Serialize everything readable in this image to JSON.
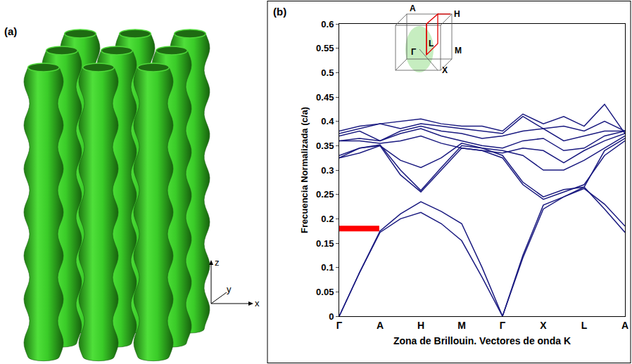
{
  "panel_a": {
    "label": "(a)",
    "axis_labels": {
      "z": "z",
      "y": "y",
      "x": "x"
    }
  },
  "chart_data": {
    "type": "line",
    "panel_label": "(b)",
    "x_label": "Zona de Brillouin. Vectores de onda K",
    "y_label": "Frecuencia Normalizada (c/a)",
    "inset": {
      "labels": [
        "A",
        "H",
        "L",
        "M",
        "Γ",
        "X"
      ]
    },
    "x": [
      0,
      0.5,
      1,
      1.5,
      2,
      2.5,
      3,
      3.5,
      4,
      4.5,
      5,
      5.5,
      6,
      6.5,
      7
    ],
    "xlim": [
      0,
      7
    ],
    "xticks": [
      {
        "value": 0,
        "label": "Γ"
      },
      {
        "value": 1,
        "label": "A"
      },
      {
        "value": 2,
        "label": "H"
      },
      {
        "value": 3,
        "label": "M"
      },
      {
        "value": 4,
        "label": "Γ"
      },
      {
        "value": 5,
        "label": "X"
      },
      {
        "value": 6,
        "label": "L"
      },
      {
        "value": 7,
        "label": "A"
      }
    ],
    "ylim": [
      0,
      0.6
    ],
    "yticks": [
      0,
      0.05,
      0.1,
      0.15,
      0.2,
      0.25,
      0.3,
      0.35,
      0.4,
      0.45,
      0.5,
      0.55,
      0.6
    ],
    "grid": false,
    "series": [
      {
        "color": "#1a1a80",
        "values": [
          0,
          0.09,
          0.172,
          0.2,
          0.213,
          0.19,
          0.155,
          0.08,
          0,
          0.125,
          0.228,
          0.245,
          0.265,
          0.22,
          0.172
        ]
      },
      {
        "color": "#1a1a80",
        "values": [
          0,
          0.09,
          0.175,
          0.21,
          0.235,
          0.215,
          0.19,
          0.1,
          0,
          0.12,
          0.22,
          0.245,
          0.262,
          0.23,
          0.185
        ]
      },
      {
        "color": "#1a1a80",
        "values": [
          0.325,
          0.345,
          0.35,
          0.29,
          0.255,
          0.3,
          0.345,
          0.34,
          0.325,
          0.27,
          0.24,
          0.255,
          0.27,
          0.33,
          0.36
        ]
      },
      {
        "color": "#1a1a80",
        "values": [
          0.33,
          0.345,
          0.352,
          0.3,
          0.258,
          0.305,
          0.35,
          0.345,
          0.33,
          0.275,
          0.245,
          0.26,
          0.265,
          0.34,
          0.365
        ]
      },
      {
        "color": "#1a1a80",
        "values": [
          0.325,
          0.335,
          0.35,
          0.32,
          0.305,
          0.325,
          0.355,
          0.345,
          0.34,
          0.33,
          0.3,
          0.3,
          0.32,
          0.345,
          0.37
        ]
      },
      {
        "color": "#1a1a80",
        "values": [
          0.36,
          0.36,
          0.355,
          0.36,
          0.37,
          0.355,
          0.345,
          0.34,
          0.335,
          0.345,
          0.34,
          0.315,
          0.34,
          0.36,
          0.375
        ]
      },
      {
        "color": "#1a1a80",
        "values": [
          0.36,
          0.365,
          0.36,
          0.375,
          0.385,
          0.37,
          0.36,
          0.35,
          0.345,
          0.36,
          0.365,
          0.34,
          0.345,
          0.37,
          0.38
        ]
      },
      {
        "color": "#1a1a80",
        "values": [
          0.37,
          0.38,
          0.36,
          0.38,
          0.39,
          0.38,
          0.375,
          0.365,
          0.37,
          0.38,
          0.385,
          0.36,
          0.37,
          0.38,
          0.38
        ]
      },
      {
        "color": "#1a1a80",
        "values": [
          0.375,
          0.385,
          0.395,
          0.385,
          0.395,
          0.39,
          0.385,
          0.38,
          0.375,
          0.41,
          0.385,
          0.39,
          0.38,
          0.4,
          0.38
        ]
      },
      {
        "color": "#1a1a80",
        "values": [
          0.38,
          0.39,
          0.395,
          0.4,
          0.405,
          0.395,
          0.39,
          0.39,
          0.38,
          0.415,
          0.395,
          0.41,
          0.39,
          0.435,
          0.375
        ]
      },
      {
        "color": "#ff0000",
        "line_style": "bold",
        "x": [
          0,
          0.98
        ],
        "values": [
          0.18,
          0.18
        ]
      }
    ]
  }
}
